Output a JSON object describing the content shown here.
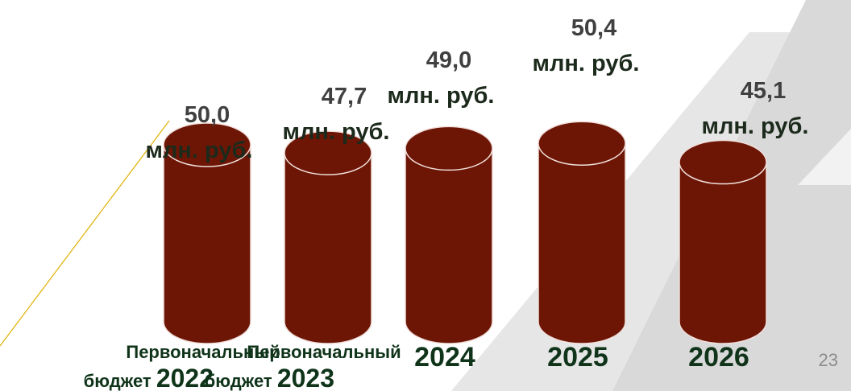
{
  "chart_data": {
    "type": "cylinder",
    "categories": [
      "Первоначальный бюджет 2022",
      "Первоначальный бюджет 2023",
      "2024",
      "2025",
      "2026"
    ],
    "values": [
      50.0,
      47.7,
      49.0,
      50.4,
      45.1
    ],
    "value_labels": [
      "50,0 млн. руб.",
      "47,7 млн. руб.",
      "49,0 млн. руб.",
      "50,4 млн. руб.",
      "45,1 млн. руб."
    ],
    "color": "#6e1605"
  },
  "page_number": "23"
}
